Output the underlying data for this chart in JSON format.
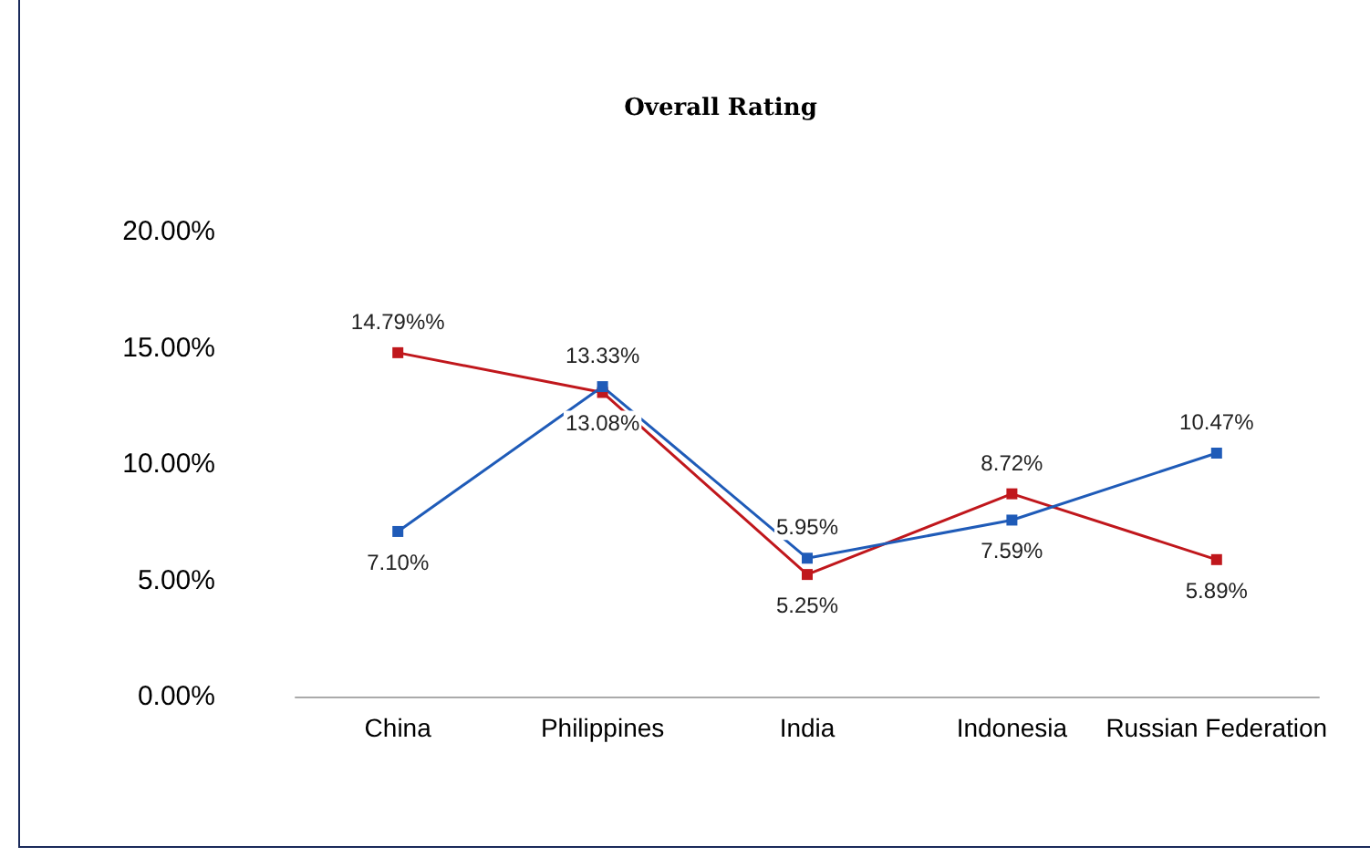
{
  "chart_data": {
    "type": "line",
    "title": "Overall Rating",
    "categories": [
      "China",
      "Philippines",
      "India",
      "Indonesia",
      "Russian Federation"
    ],
    "series": [
      {
        "color": "#c0171c",
        "values": [
          14.79,
          13.08,
          5.25,
          8.72,
          5.89
        ],
        "value_labels": [
          "14.79%%",
          "13.08%",
          "5.25%",
          "8.72%",
          "5.89%"
        ]
      },
      {
        "color": "#1f5bb8",
        "values": [
          7.1,
          13.33,
          5.95,
          7.59,
          10.47
        ],
        "value_labels": [
          "7.10%",
          "13.33%",
          "5.95%",
          "7.59%",
          "10.47%"
        ]
      }
    ],
    "ylim": [
      0,
      20
    ],
    "yticks": [
      {
        "value": 0,
        "label": "0.00%"
      },
      {
        "value": 5,
        "label": "5.00%"
      },
      {
        "value": 10,
        "label": "10.00%"
      },
      {
        "value": 15,
        "label": "15.00%"
      },
      {
        "value": 20,
        "label": "20.00%"
      }
    ],
    "grid": false,
    "marker": "square",
    "line_style": "solid"
  }
}
